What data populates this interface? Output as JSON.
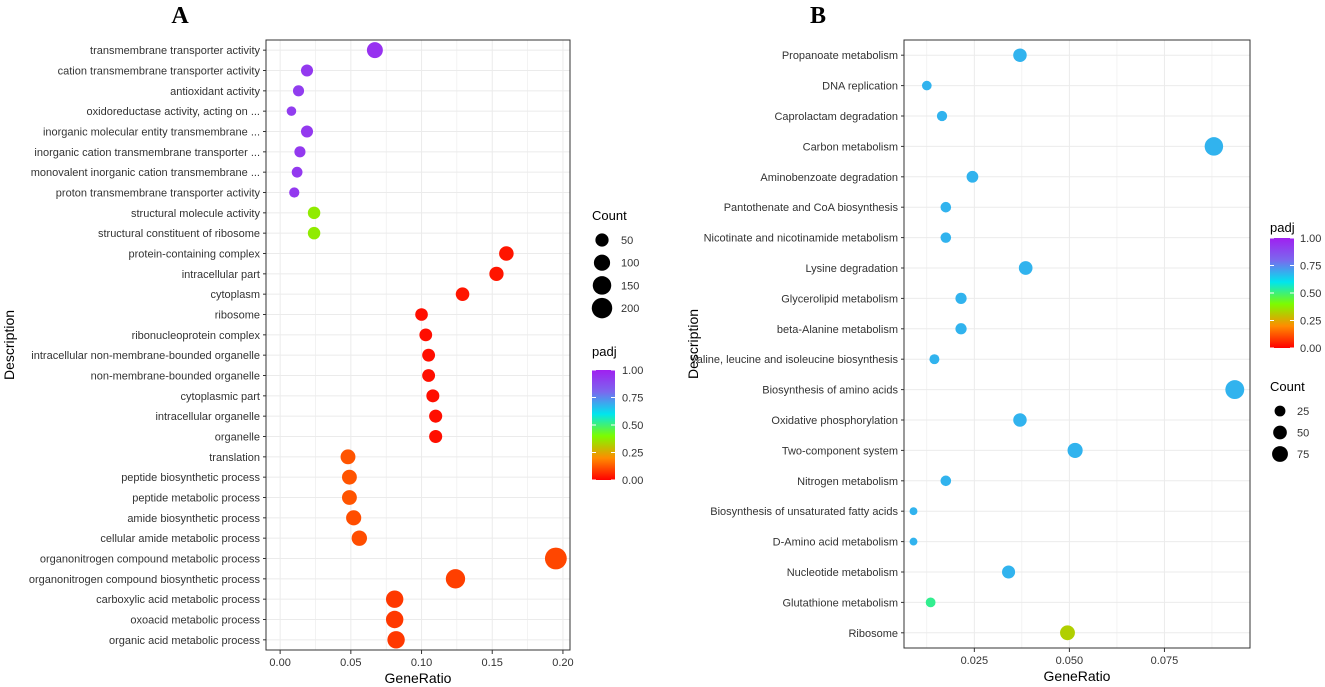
{
  "chart_data": [
    {
      "type": "scatter",
      "panel": "A",
      "xlabel": "GeneRatio",
      "ylabel": "Description",
      "xlim": [
        -0.01,
        0.205
      ],
      "xticks": [
        0.0,
        0.05,
        0.1,
        0.15,
        0.2
      ],
      "xtick_labels": [
        "0.00",
        "0.05",
        "0.10",
        "0.15",
        "0.20"
      ],
      "grid": true,
      "points": [
        {
          "term": "transmembrane transporter activity",
          "x": 0.067,
          "count": 95,
          "padj": 0.95
        },
        {
          "term": "cation transmembrane transporter activity",
          "x": 0.019,
          "count": 35,
          "padj": 0.93
        },
        {
          "term": "antioxidant activity",
          "x": 0.013,
          "count": 25,
          "padj": 0.92
        },
        {
          "term": "oxidoreductase activity, acting on ...",
          "x": 0.008,
          "count": 12,
          "padj": 0.92
        },
        {
          "term": "inorganic molecular entity transmembrane ...",
          "x": 0.019,
          "count": 35,
          "padj": 0.93
        },
        {
          "term": "inorganic cation transmembrane transporter ...",
          "x": 0.014,
          "count": 25,
          "padj": 0.93
        },
        {
          "term": "monovalent inorganic cation transmembrane ...",
          "x": 0.012,
          "count": 22,
          "padj": 0.93
        },
        {
          "term": "proton transmembrane transporter activity",
          "x": 0.01,
          "count": 17,
          "padj": 0.93
        },
        {
          "term": "structural molecule activity",
          "x": 0.024,
          "count": 40,
          "padj": 0.37
        },
        {
          "term": "structural constituent of ribosome",
          "x": 0.024,
          "count": 40,
          "padj": 0.37
        },
        {
          "term": "protein-containing complex",
          "x": 0.16,
          "count": 70,
          "padj": 0.03
        },
        {
          "term": "intracellular part",
          "x": 0.153,
          "count": 65,
          "padj": 0.03
        },
        {
          "term": "cytoplasm",
          "x": 0.129,
          "count": 55,
          "padj": 0.03
        },
        {
          "term": "ribosome",
          "x": 0.1,
          "count": 42,
          "padj": 0.02
        },
        {
          "term": "ribonucleoprotein complex",
          "x": 0.103,
          "count": 44,
          "padj": 0.02
        },
        {
          "term": "intracellular non-membrane-bounded organelle",
          "x": 0.105,
          "count": 45,
          "padj": 0.02
        },
        {
          "term": "non-membrane-bounded organelle",
          "x": 0.105,
          "count": 45,
          "padj": 0.02
        },
        {
          "term": "cytoplasmic part",
          "x": 0.108,
          "count": 47,
          "padj": 0.02
        },
        {
          "term": "intracellular organelle",
          "x": 0.11,
          "count": 48,
          "padj": 0.02
        },
        {
          "term": "organelle",
          "x": 0.11,
          "count": 48,
          "padj": 0.02
        },
        {
          "term": "translation",
          "x": 0.048,
          "count": 75,
          "padj": 0.12
        },
        {
          "term": "peptide biosynthetic process",
          "x": 0.049,
          "count": 75,
          "padj": 0.12
        },
        {
          "term": "peptide metabolic process",
          "x": 0.049,
          "count": 75,
          "padj": 0.12
        },
        {
          "term": "amide biosynthetic process",
          "x": 0.052,
          "count": 80,
          "padj": 0.11
        },
        {
          "term": "cellular amide metabolic process",
          "x": 0.056,
          "count": 85,
          "padj": 0.11
        },
        {
          "term": "organonitrogen compound metabolic process",
          "x": 0.195,
          "count": 240,
          "padj": 0.1
        },
        {
          "term": "organonitrogen compound biosynthetic process",
          "x": 0.124,
          "count": 170,
          "padj": 0.09
        },
        {
          "term": "carboxylic acid metabolic process",
          "x": 0.081,
          "count": 125,
          "padj": 0.08
        },
        {
          "term": "oxoacid metabolic process",
          "x": 0.081,
          "count": 125,
          "padj": 0.08
        },
        {
          "term": "organic acid metabolic process",
          "x": 0.082,
          "count": 125,
          "padj": 0.08
        }
      ],
      "legends": {
        "size": {
          "title": "Count",
          "values": [
            50,
            100,
            150,
            200
          ],
          "labels": [
            "50",
            "100",
            "150",
            "200"
          ]
        },
        "color": {
          "title": "padj",
          "range": [
            0,
            1
          ],
          "ticks": [
            1.0,
            0.75,
            0.5,
            0.25,
            0.0
          ],
          "tick_labels": [
            "1.00",
            "0.75",
            "0.50",
            "0.25",
            "0.00"
          ]
        }
      }
    },
    {
      "type": "scatter",
      "panel": "B",
      "xlabel": "GeneRatio",
      "ylabel": "Description",
      "xlim": [
        0.0065,
        0.0975
      ],
      "xticks": [
        0.025,
        0.05,
        0.075
      ],
      "xtick_labels": [
        "0.025",
        "0.050",
        "0.075"
      ],
      "grid": true,
      "points": [
        {
          "term": "Propanoate metabolism",
          "x": 0.037,
          "count": 48,
          "padj": 0.68
        },
        {
          "term": "DNA replication",
          "x": 0.0125,
          "count": 17,
          "padj": 0.68
        },
        {
          "term": "Caprolactam degradation",
          "x": 0.0165,
          "count": 21,
          "padj": 0.68
        },
        {
          "term": "Carbon metabolism",
          "x": 0.088,
          "count": 112,
          "padj": 0.68
        },
        {
          "term": "Aminobenzoate degradation",
          "x": 0.0245,
          "count": 32,
          "padj": 0.68
        },
        {
          "term": "Pantothenate and CoA biosynthesis",
          "x": 0.0175,
          "count": 23,
          "padj": 0.68
        },
        {
          "term": "Nicotinate and nicotinamide metabolism",
          "x": 0.0175,
          "count": 23,
          "padj": 0.68
        },
        {
          "term": "Lysine degradation",
          "x": 0.0385,
          "count": 50,
          "padj": 0.68
        },
        {
          "term": "Glycerolipid metabolism",
          "x": 0.0215,
          "count": 28,
          "padj": 0.68
        },
        {
          "term": "beta-Alanine metabolism",
          "x": 0.0215,
          "count": 28,
          "padj": 0.68
        },
        {
          "term": "Valine, leucine and isoleucine biosynthesis",
          "x": 0.0145,
          "count": 19,
          "padj": 0.68
        },
        {
          "term": "Biosynthesis of amino acids",
          "x": 0.0935,
          "count": 118,
          "padj": 0.68
        },
        {
          "term": "Oxidative phosphorylation",
          "x": 0.037,
          "count": 48,
          "padj": 0.68
        },
        {
          "term": "Two-component system",
          "x": 0.0515,
          "count": 66,
          "padj": 0.68
        },
        {
          "term": "Nitrogen metabolism",
          "x": 0.0175,
          "count": 23,
          "padj": 0.68
        },
        {
          "term": "Biosynthesis of unsaturated fatty acids",
          "x": 0.009,
          "count": 8,
          "padj": 0.68
        },
        {
          "term": "D-Amino acid metabolism",
          "x": 0.009,
          "count": 8,
          "padj": 0.68
        },
        {
          "term": "Nucleotide metabolism",
          "x": 0.034,
          "count": 44,
          "padj": 0.68
        },
        {
          "term": "Glutathione metabolism",
          "x": 0.0135,
          "count": 18,
          "padj": 0.52
        },
        {
          "term": "Ribosome",
          "x": 0.0495,
          "count": 63,
          "padj": 0.32
        }
      ],
      "legends": {
        "size": {
          "title": "Count",
          "values": [
            25,
            50,
            75
          ],
          "labels": [
            "25",
            "50",
            "75"
          ]
        },
        "color": {
          "title": "padj",
          "range": [
            0,
            1
          ],
          "ticks": [
            1.0,
            0.75,
            0.5,
            0.25,
            0.0
          ],
          "tick_labels": [
            "1.00",
            "0.75",
            "0.50",
            "0.25",
            "0.00"
          ]
        }
      }
    }
  ],
  "colors": {
    "gradient": [
      "#ff0000",
      "#ff8c00",
      "#7cfc00",
      "#00e5ee",
      "#7b68ee",
      "#a020f0"
    ],
    "grid": "#ebebeb",
    "panel_border": "#333333"
  }
}
